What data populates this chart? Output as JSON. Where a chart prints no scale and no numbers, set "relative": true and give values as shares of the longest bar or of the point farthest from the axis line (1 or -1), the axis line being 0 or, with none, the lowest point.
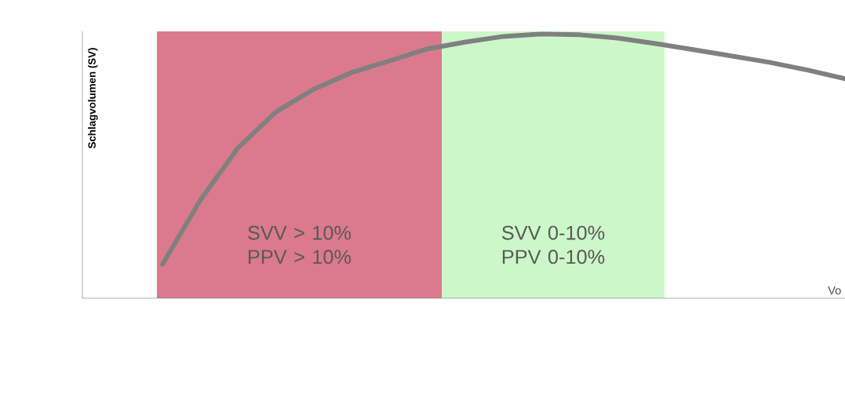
{
  "chart_data": {
    "type": "line",
    "relative": true,
    "xlabel": "Vo",
    "ylabel": "Schlagvolumen (SV)",
    "color": "#808080",
    "categories": [
      null,
      null,
      null,
      null,
      null,
      null,
      null,
      null,
      null,
      null,
      null,
      null,
      null,
      null,
      null,
      null,
      null,
      null,
      null
    ],
    "values": [
      0.128,
      0.371,
      0.57,
      0.706,
      0.792,
      0.855,
      0.899,
      0.944,
      0.97,
      0.991,
      1.0,
      0.997,
      0.985,
      0.964,
      0.941,
      0.917,
      0.893,
      0.864,
      0.831
    ],
    "annotations": [
      "SVV > 10% PPV > 10%",
      "SVV 0-10% PPV 0-10%"
    ]
  }
}
